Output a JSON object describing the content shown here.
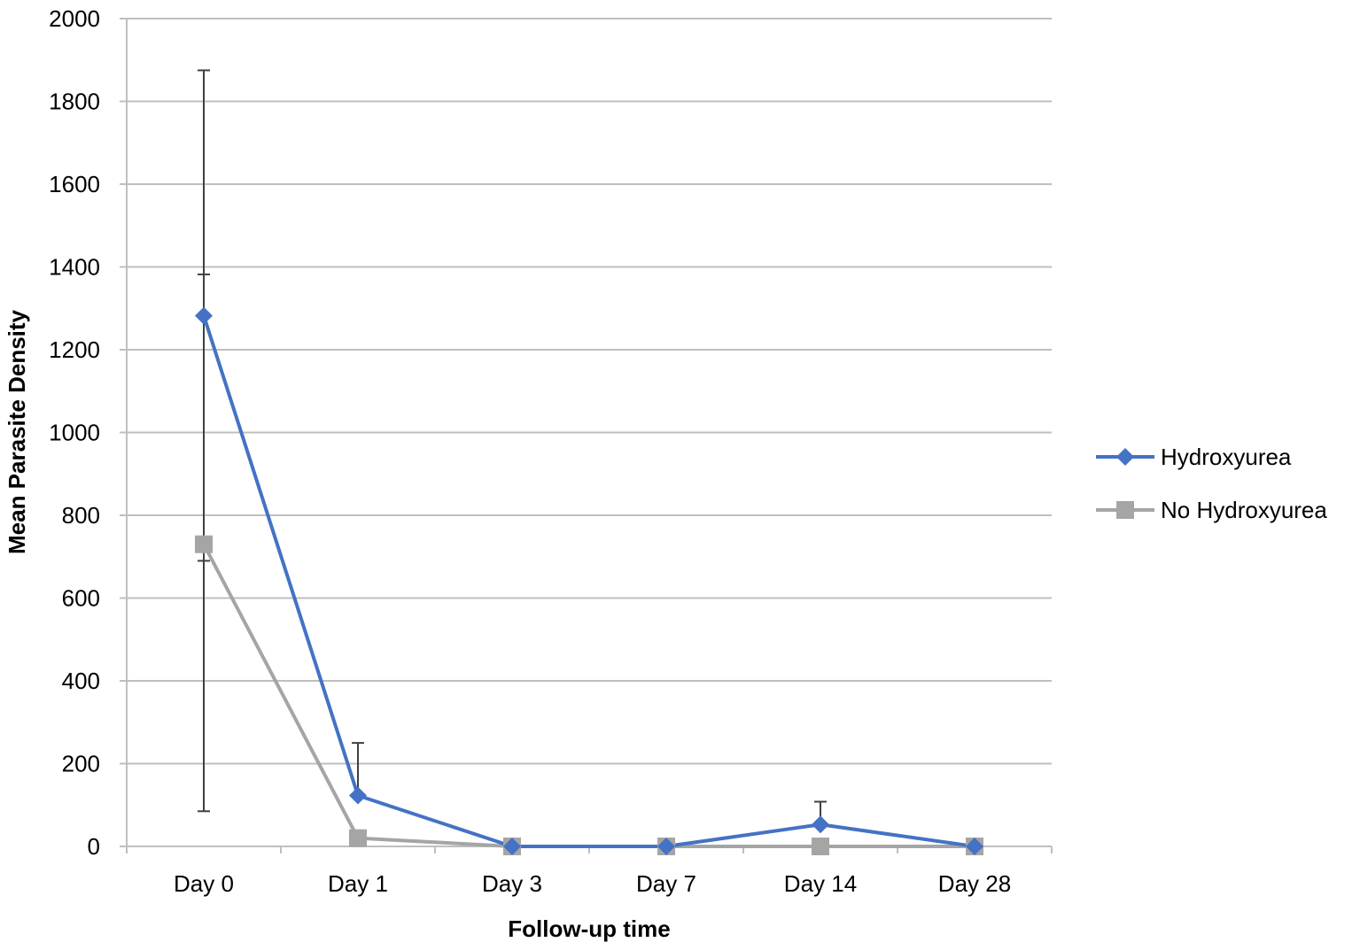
{
  "chart_data": {
    "type": "line",
    "title": "",
    "xlabel": "Follow-up time",
    "ylabel": "Mean Parasite Density",
    "categories": [
      "Day 0",
      "Day 1",
      "Day 3",
      "Day 7",
      "Day 14",
      "Day 28"
    ],
    "ylim": [
      0,
      2000
    ],
    "yticks": [
      0,
      200,
      400,
      600,
      800,
      1000,
      1200,
      1400,
      1600,
      1800,
      2000
    ],
    "grid": true,
    "legend_position": "right",
    "series": [
      {
        "name": "Hydroxyurea",
        "marker": "diamond",
        "color": "#4472C4",
        "values": [
          1282,
          123,
          0,
          0,
          53,
          0
        ],
        "error_upper": [
          1875,
          250,
          null,
          null,
          108,
          null
        ],
        "error_lower": [
          690,
          null,
          null,
          null,
          null,
          null
        ]
      },
      {
        "name": "No Hydroxyurea",
        "marker": "square",
        "color": "#A5A5A5",
        "values": [
          730,
          20,
          0,
          0,
          0,
          0
        ],
        "error_upper": [
          1382,
          null,
          null,
          null,
          null,
          null
        ],
        "error_lower": [
          85,
          null,
          null,
          null,
          null,
          null
        ]
      }
    ]
  }
}
